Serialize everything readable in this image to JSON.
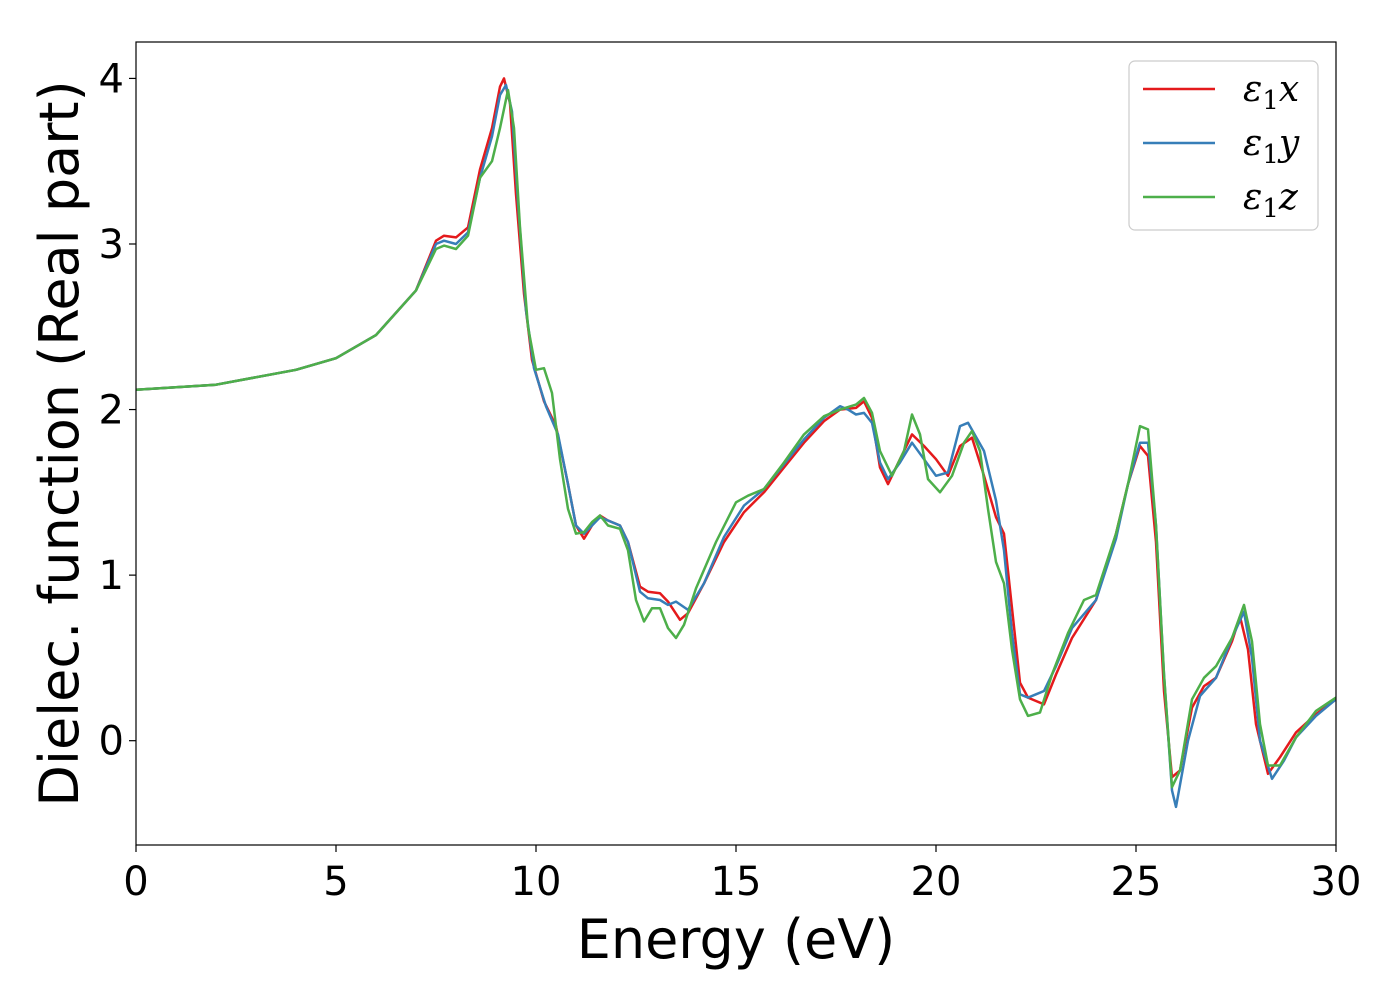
{
  "chart_data": {
    "type": "line",
    "title": "",
    "xlabel": "Energy (eV)",
    "ylabel": "Dielec. function (Real part)",
    "xlim": [
      0,
      30
    ],
    "ylim": [
      -0.63,
      4.22
    ],
    "xticks": [
      0,
      5,
      10,
      15,
      20,
      25,
      30
    ],
    "yticks": [
      0,
      1,
      2,
      3,
      4
    ],
    "grid": false,
    "legend_position": "top-right",
    "series": [
      {
        "name": "ε₁x",
        "legend_main": "ε",
        "legend_sub": "1",
        "legend_var": "x",
        "color": "#e41a1c",
        "points": [
          [
            0,
            2.12
          ],
          [
            2,
            2.15
          ],
          [
            4,
            2.24
          ],
          [
            5,
            2.31
          ],
          [
            6,
            2.45
          ],
          [
            7,
            2.72
          ],
          [
            7.5,
            3.02
          ],
          [
            7.7,
            3.05
          ],
          [
            8,
            3.04
          ],
          [
            8.3,
            3.1
          ],
          [
            8.6,
            3.45
          ],
          [
            8.9,
            3.7
          ],
          [
            9.1,
            3.95
          ],
          [
            9.2,
            4.0
          ],
          [
            9.35,
            3.85
          ],
          [
            9.5,
            3.3
          ],
          [
            9.7,
            2.7
          ],
          [
            9.9,
            2.3
          ],
          [
            10.2,
            2.05
          ],
          [
            10.5,
            1.9
          ],
          [
            10.8,
            1.55
          ],
          [
            11,
            1.3
          ],
          [
            11.2,
            1.22
          ],
          [
            11.4,
            1.3
          ],
          [
            11.6,
            1.36
          ],
          [
            11.8,
            1.33
          ],
          [
            12.1,
            1.3
          ],
          [
            12.3,
            1.2
          ],
          [
            12.6,
            0.93
          ],
          [
            12.8,
            0.9
          ],
          [
            13.1,
            0.89
          ],
          [
            13.3,
            0.84
          ],
          [
            13.6,
            0.73
          ],
          [
            13.8,
            0.77
          ],
          [
            14.2,
            0.95
          ],
          [
            14.7,
            1.2
          ],
          [
            15.2,
            1.38
          ],
          [
            15.7,
            1.5
          ],
          [
            16.2,
            1.65
          ],
          [
            16.7,
            1.8
          ],
          [
            17.2,
            1.93
          ],
          [
            17.6,
            2.0
          ],
          [
            18.0,
            2.01
          ],
          [
            18.2,
            2.05
          ],
          [
            18.4,
            1.95
          ],
          [
            18.6,
            1.65
          ],
          [
            18.8,
            1.55
          ],
          [
            19.1,
            1.7
          ],
          [
            19.4,
            1.85
          ],
          [
            19.7,
            1.78
          ],
          [
            20.0,
            1.7
          ],
          [
            20.3,
            1.6
          ],
          [
            20.6,
            1.78
          ],
          [
            20.9,
            1.83
          ],
          [
            21.2,
            1.6
          ],
          [
            21.5,
            1.35
          ],
          [
            21.7,
            1.25
          ],
          [
            21.9,
            0.8
          ],
          [
            22.1,
            0.35
          ],
          [
            22.3,
            0.26
          ],
          [
            22.5,
            0.24
          ],
          [
            22.7,
            0.22
          ],
          [
            23.0,
            0.4
          ],
          [
            23.4,
            0.62
          ],
          [
            24.0,
            0.85
          ],
          [
            24.5,
            1.25
          ],
          [
            24.8,
            1.55
          ],
          [
            25.1,
            1.78
          ],
          [
            25.3,
            1.72
          ],
          [
            25.5,
            1.2
          ],
          [
            25.7,
            0.3
          ],
          [
            25.9,
            -0.22
          ],
          [
            26.1,
            -0.18
          ],
          [
            26.4,
            0.2
          ],
          [
            26.7,
            0.33
          ],
          [
            27.0,
            0.38
          ],
          [
            27.4,
            0.6
          ],
          [
            27.6,
            0.75
          ],
          [
            27.8,
            0.55
          ],
          [
            28.0,
            0.1
          ],
          [
            28.3,
            -0.2
          ],
          [
            28.6,
            -0.1
          ],
          [
            29.0,
            0.05
          ],
          [
            29.5,
            0.16
          ],
          [
            30,
            0.25
          ]
        ]
      },
      {
        "name": "ε₁y",
        "legend_main": "ε",
        "legend_sub": "1",
        "legend_var": "y",
        "color": "#377eb8",
        "points": [
          [
            0,
            2.12
          ],
          [
            2,
            2.15
          ],
          [
            4,
            2.24
          ],
          [
            5,
            2.31
          ],
          [
            6,
            2.45
          ],
          [
            7,
            2.72
          ],
          [
            7.5,
            3.0
          ],
          [
            7.7,
            3.02
          ],
          [
            8,
            3.0
          ],
          [
            8.3,
            3.07
          ],
          [
            8.6,
            3.4
          ],
          [
            8.9,
            3.65
          ],
          [
            9.1,
            3.9
          ],
          [
            9.25,
            3.96
          ],
          [
            9.4,
            3.8
          ],
          [
            9.55,
            3.25
          ],
          [
            9.75,
            2.6
          ],
          [
            9.95,
            2.25
          ],
          [
            10.25,
            2.02
          ],
          [
            10.55,
            1.85
          ],
          [
            10.8,
            1.55
          ],
          [
            11,
            1.3
          ],
          [
            11.2,
            1.25
          ],
          [
            11.4,
            1.3
          ],
          [
            11.6,
            1.35
          ],
          [
            11.8,
            1.33
          ],
          [
            12.1,
            1.3
          ],
          [
            12.3,
            1.2
          ],
          [
            12.6,
            0.9
          ],
          [
            12.8,
            0.86
          ],
          [
            13.1,
            0.85
          ],
          [
            13.3,
            0.82
          ],
          [
            13.5,
            0.84
          ],
          [
            13.8,
            0.79
          ],
          [
            14.2,
            0.95
          ],
          [
            14.7,
            1.23
          ],
          [
            15.2,
            1.42
          ],
          [
            15.7,
            1.52
          ],
          [
            16.2,
            1.67
          ],
          [
            16.7,
            1.82
          ],
          [
            17.2,
            1.95
          ],
          [
            17.6,
            2.02
          ],
          [
            17.8,
            2.0
          ],
          [
            18.0,
            1.97
          ],
          [
            18.2,
            1.98
          ],
          [
            18.4,
            1.92
          ],
          [
            18.6,
            1.68
          ],
          [
            18.8,
            1.58
          ],
          [
            19.1,
            1.68
          ],
          [
            19.4,
            1.8
          ],
          [
            19.7,
            1.7
          ],
          [
            20.0,
            1.6
          ],
          [
            20.3,
            1.62
          ],
          [
            20.6,
            1.9
          ],
          [
            20.8,
            1.92
          ],
          [
            21.2,
            1.75
          ],
          [
            21.5,
            1.45
          ],
          [
            21.7,
            1.15
          ],
          [
            21.9,
            0.65
          ],
          [
            22.1,
            0.28
          ],
          [
            22.3,
            0.26
          ],
          [
            22.5,
            0.28
          ],
          [
            22.7,
            0.3
          ],
          [
            23.0,
            0.45
          ],
          [
            23.4,
            0.68
          ],
          [
            24.0,
            0.85
          ],
          [
            24.5,
            1.22
          ],
          [
            24.8,
            1.55
          ],
          [
            25.1,
            1.8
          ],
          [
            25.3,
            1.8
          ],
          [
            25.5,
            1.3
          ],
          [
            25.7,
            0.4
          ],
          [
            25.9,
            -0.3
          ],
          [
            26.0,
            -0.4
          ],
          [
            26.3,
            0.0
          ],
          [
            26.6,
            0.27
          ],
          [
            27.0,
            0.38
          ],
          [
            27.4,
            0.62
          ],
          [
            27.7,
            0.78
          ],
          [
            27.9,
            0.5
          ],
          [
            28.1,
            0.0
          ],
          [
            28.4,
            -0.23
          ],
          [
            28.7,
            -0.12
          ],
          [
            29.0,
            0.02
          ],
          [
            29.5,
            0.15
          ],
          [
            30,
            0.25
          ]
        ]
      },
      {
        "name": "ε₁z",
        "legend_main": "ε",
        "legend_sub": "1",
        "legend_var": "z",
        "color": "#4daf4a",
        "points": [
          [
            0,
            2.12
          ],
          [
            2,
            2.15
          ],
          [
            4,
            2.24
          ],
          [
            5,
            2.31
          ],
          [
            6,
            2.45
          ],
          [
            7,
            2.72
          ],
          [
            7.5,
            2.97
          ],
          [
            7.7,
            2.99
          ],
          [
            8,
            2.97
          ],
          [
            8.3,
            3.05
          ],
          [
            8.6,
            3.4
          ],
          [
            8.9,
            3.5
          ],
          [
            9.1,
            3.7
          ],
          [
            9.3,
            3.93
          ],
          [
            9.45,
            3.7
          ],
          [
            9.6,
            3.1
          ],
          [
            9.8,
            2.5
          ],
          [
            10.0,
            2.24
          ],
          [
            10.2,
            2.25
          ],
          [
            10.4,
            2.1
          ],
          [
            10.6,
            1.7
          ],
          [
            10.8,
            1.4
          ],
          [
            11.0,
            1.25
          ],
          [
            11.2,
            1.26
          ],
          [
            11.4,
            1.32
          ],
          [
            11.6,
            1.36
          ],
          [
            11.8,
            1.3
          ],
          [
            12.1,
            1.28
          ],
          [
            12.3,
            1.15
          ],
          [
            12.5,
            0.85
          ],
          [
            12.7,
            0.72
          ],
          [
            12.9,
            0.8
          ],
          [
            13.1,
            0.8
          ],
          [
            13.3,
            0.68
          ],
          [
            13.5,
            0.62
          ],
          [
            13.7,
            0.7
          ],
          [
            14.0,
            0.92
          ],
          [
            14.5,
            1.2
          ],
          [
            15.0,
            1.44
          ],
          [
            15.3,
            1.48
          ],
          [
            15.7,
            1.52
          ],
          [
            16.2,
            1.68
          ],
          [
            16.7,
            1.85
          ],
          [
            17.2,
            1.96
          ],
          [
            17.6,
            2.0
          ],
          [
            18.0,
            2.03
          ],
          [
            18.2,
            2.07
          ],
          [
            18.4,
            1.98
          ],
          [
            18.6,
            1.75
          ],
          [
            18.9,
            1.6
          ],
          [
            19.2,
            1.75
          ],
          [
            19.4,
            1.97
          ],
          [
            19.6,
            1.85
          ],
          [
            19.8,
            1.58
          ],
          [
            20.1,
            1.5
          ],
          [
            20.4,
            1.6
          ],
          [
            20.7,
            1.8
          ],
          [
            20.9,
            1.87
          ],
          [
            21.1,
            1.75
          ],
          [
            21.3,
            1.4
          ],
          [
            21.5,
            1.08
          ],
          [
            21.7,
            0.95
          ],
          [
            21.9,
            0.55
          ],
          [
            22.1,
            0.25
          ],
          [
            22.3,
            0.15
          ],
          [
            22.6,
            0.17
          ],
          [
            22.9,
            0.4
          ],
          [
            23.3,
            0.65
          ],
          [
            23.7,
            0.85
          ],
          [
            24.0,
            0.88
          ],
          [
            24.5,
            1.25
          ],
          [
            24.8,
            1.55
          ],
          [
            25.1,
            1.9
          ],
          [
            25.3,
            1.88
          ],
          [
            25.5,
            1.3
          ],
          [
            25.7,
            0.4
          ],
          [
            25.9,
            -0.28
          ],
          [
            26.1,
            -0.18
          ],
          [
            26.4,
            0.25
          ],
          [
            26.7,
            0.38
          ],
          [
            27.0,
            0.45
          ],
          [
            27.4,
            0.62
          ],
          [
            27.7,
            0.82
          ],
          [
            27.9,
            0.6
          ],
          [
            28.1,
            0.1
          ],
          [
            28.3,
            -0.15
          ],
          [
            28.6,
            -0.15
          ],
          [
            29.0,
            0.02
          ],
          [
            29.5,
            0.18
          ],
          [
            30,
            0.26
          ]
        ]
      }
    ]
  }
}
